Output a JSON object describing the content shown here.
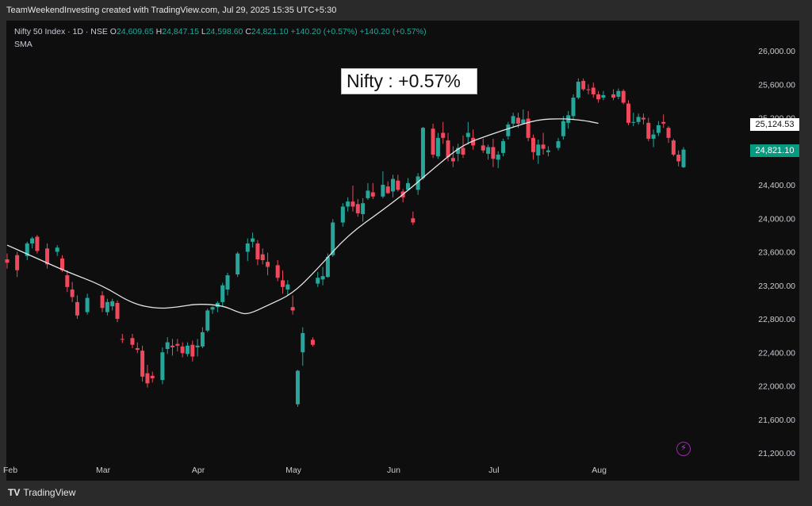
{
  "header": {
    "attribution": "TeamWeekendInvesting created with TradingView.com, Jul 29, 2025 15:35 UTC+5:30"
  },
  "legend": {
    "symbol": "Nifty 50 Index · 1D · NSE",
    "o_label": "O",
    "o_value": "24,609.65",
    "h_label": "H",
    "h_value": "24,847.15",
    "l_label": "L",
    "l_value": "24,598.60",
    "c_label": "C",
    "c_value": "24,821.10",
    "change": "+140.20 (+0.57%)",
    "change2": "+140.20 (+0.57%)",
    "indicator": "SMA"
  },
  "annotation": "Nifty : +0.57%",
  "badges": {
    "sma_value": "25,124.53",
    "last_price": "24,821.10"
  },
  "footer": {
    "logo_mark": "TV",
    "logo_text": "TradingView"
  },
  "icons": {
    "bolt": "lightning-bolt-icon"
  },
  "colors": {
    "up": "#26a69a",
    "down": "#f0485c",
    "sma": "#e6e6e6",
    "background": "#0e0e0e"
  },
  "chart_data": {
    "type": "candlestick",
    "title": "Nifty 50 Index · 1D · NSE",
    "y_ticks": [
      "26,000.00",
      "25,600.00",
      "25,200.00",
      "24,800.00",
      "24,400.00",
      "24,000.00",
      "23,600.00",
      "23,200.00",
      "22,800.00",
      "22,400.00",
      "22,000.00",
      "21,600.00",
      "21,200.00"
    ],
    "y_tick_values": [
      26000,
      25600,
      25200,
      24800,
      24400,
      24000,
      23600,
      23200,
      22800,
      22400,
      22000,
      21600,
      21200
    ],
    "ylim": [
      21050,
      26150
    ],
    "x_labels": [
      "Feb",
      "Mar",
      "Apr",
      "May",
      "Jun",
      "Jul",
      "Aug"
    ],
    "x_label_index": [
      0,
      19,
      38,
      57,
      77,
      97,
      118
    ],
    "index_range": [
      0,
      135
    ],
    "grid": false,
    "candles": [
      [
        23510,
        23580,
        23400,
        23470
      ],
      [
        23560,
        23600,
        23300,
        23380
      ],
      [
        23550,
        23720,
        23500,
        23700
      ],
      [
        23700,
        23780,
        23640,
        23760
      ],
      [
        23780,
        23800,
        23580,
        23610
      ],
      [
        23640,
        23700,
        23400,
        23450
      ],
      [
        23600,
        23680,
        23550,
        23650
      ],
      [
        23520,
        23560,
        23360,
        23380
      ],
      [
        23320,
        23380,
        23120,
        23180
      ],
      [
        23150,
        23240,
        23000,
        23060
      ],
      [
        23000,
        23080,
        22800,
        22840
      ],
      [
        22880,
        23100,
        22850,
        23050
      ],
      [
        23080,
        23130,
        22880,
        22930
      ],
      [
        22880,
        23040,
        22840,
        23000
      ],
      [
        22950,
        23040,
        22900,
        23010
      ],
      [
        22990,
        23020,
        22760,
        22800
      ],
      [
        22560,
        22620,
        22510,
        22550
      ],
      [
        22570,
        22620,
        22450,
        22490
      ],
      [
        22450,
        22520,
        22390,
        22430
      ],
      [
        22420,
        22480,
        22050,
        22110
      ],
      [
        22150,
        22250,
        21980,
        22030
      ],
      [
        22120,
        22170,
        22040,
        22090
      ],
      [
        22070,
        22460,
        22020,
        22400
      ],
      [
        22440,
        22580,
        22380,
        22520
      ],
      [
        22480,
        22560,
        22360,
        22460
      ],
      [
        22500,
        22560,
        22410,
        22480
      ],
      [
        22470,
        22520,
        22340,
        22390
      ],
      [
        22380,
        22520,
        22350,
        22480
      ],
      [
        22490,
        22540,
        22290,
        22350
      ],
      [
        22460,
        22560,
        22350,
        22480
      ],
      [
        22470,
        22700,
        22450,
        22640
      ],
      [
        22660,
        22920,
        22640,
        22900
      ],
      [
        22910,
        22950,
        22860,
        22940
      ],
      [
        22940,
        23010,
        22880,
        22990
      ],
      [
        23000,
        23230,
        22950,
        23200
      ],
      [
        23150,
        23350,
        23080,
        23320
      ],
      [
        23330,
        23600,
        23300,
        23580
      ],
      [
        23600,
        23760,
        23490,
        23700
      ],
      [
        23720,
        23830,
        23650,
        23760
      ],
      [
        23700,
        23740,
        23440,
        23510
      ],
      [
        23570,
        23640,
        23450,
        23500
      ],
      [
        23480,
        23590,
        23320,
        23420
      ],
      [
        23440,
        23500,
        23250,
        23290
      ],
      [
        23260,
        23380,
        23100,
        23180
      ],
      [
        23150,
        23260,
        23080,
        23210
      ],
      [
        22940,
        23080,
        22850,
        22900
      ],
      [
        21780,
        22190,
        21750,
        22180
      ],
      [
        22400,
        22700,
        22240,
        22630
      ],
      [
        22550,
        22580,
        22470,
        22490
      ],
      [
        23220,
        23360,
        23180,
        23290
      ],
      [
        23270,
        23420,
        23200,
        23310
      ],
      [
        23300,
        23580,
        23290,
        23540
      ],
      [
        23560,
        23990,
        23540,
        23950
      ],
      [
        23950,
        24180,
        23900,
        24140
      ],
      [
        24140,
        24250,
        24080,
        24200
      ],
      [
        24200,
        24390,
        24080,
        24140
      ],
      [
        24170,
        24230,
        24020,
        24060
      ],
      [
        24050,
        24240,
        23960,
        24180
      ],
      [
        24240,
        24420,
        24220,
        24330
      ],
      [
        24310,
        24420,
        24230,
        24260
      ],
      [
        24260,
        24560,
        24240,
        24400
      ],
      [
        24380,
        24440,
        24290,
        24300
      ],
      [
        24320,
        24520,
        24250,
        24470
      ],
      [
        24450,
        24520,
        24320,
        24340
      ],
      [
        24320,
        24350,
        24190,
        24250
      ],
      [
        24340,
        24480,
        24330,
        24420
      ],
      [
        24000,
        24080,
        23920,
        23950
      ],
      [
        24340,
        24540,
        24280,
        24500
      ],
      [
        24480,
        25090,
        24460,
        25080
      ],
      [
        25070,
        25130,
        24720,
        24760
      ],
      [
        24740,
        25020,
        24710,
        24960
      ],
      [
        25020,
        25150,
        24890,
        24960
      ],
      [
        24930,
        25020,
        24680,
        24730
      ],
      [
        24720,
        24860,
        24610,
        24680
      ],
      [
        24770,
        24890,
        24680,
        24840
      ],
      [
        24840,
        24990,
        24720,
        24760
      ],
      [
        24970,
        25150,
        24880,
        25020
      ],
      [
        24960,
        25060,
        24820,
        24870
      ],
      [
        24870,
        24950,
        24780,
        24810
      ],
      [
        24770,
        24880,
        24700,
        24850
      ],
      [
        24850,
        24950,
        24610,
        24710
      ],
      [
        24700,
        24800,
        24600,
        24760
      ],
      [
        24780,
        24950,
        24740,
        24920
      ],
      [
        24980,
        25150,
        24940,
        25120
      ],
      [
        25130,
        25260,
        25080,
        25220
      ],
      [
        25200,
        25260,
        25080,
        25130
      ],
      [
        25130,
        25300,
        25120,
        25180
      ],
      [
        25190,
        25280,
        24920,
        24960
      ],
      [
        24960,
        25000,
        24700,
        24790
      ],
      [
        24750,
        24940,
        24650,
        24880
      ],
      [
        24880,
        25020,
        24760,
        24830
      ],
      [
        24790,
        24860,
        24740,
        24810
      ],
      [
        24840,
        24960,
        24810,
        24920
      ],
      [
        24980,
        25220,
        24940,
        25160
      ],
      [
        25140,
        25280,
        25070,
        25230
      ],
      [
        25220,
        25480,
        25180,
        25440
      ],
      [
        25440,
        25670,
        25420,
        25630
      ],
      [
        25640,
        25670,
        25520,
        25540
      ],
      [
        25540,
        25600,
        25480,
        25530
      ],
      [
        25560,
        25620,
        25440,
        25480
      ],
      [
        25480,
        25520,
        25380,
        25420
      ],
      [
        25440,
        25520,
        25410,
        25470
      ],
      [
        25480,
        25540,
        25410,
        25440
      ],
      [
        25450,
        25550,
        25420,
        25520
      ],
      [
        25520,
        25540,
        25360,
        25380
      ],
      [
        25370,
        25410,
        25110,
        25140
      ],
      [
        25140,
        25260,
        25100,
        25150
      ],
      [
        25150,
        25250,
        25120,
        25210
      ],
      [
        25200,
        25250,
        25120,
        25180
      ],
      [
        25140,
        25200,
        24920,
        24950
      ],
      [
        24950,
        25060,
        24850,
        25000
      ],
      [
        25020,
        25160,
        24980,
        25110
      ],
      [
        25150,
        25240,
        25080,
        25130
      ],
      [
        25080,
        25100,
        24900,
        24960
      ],
      [
        24930,
        24950,
        24740,
        24760
      ],
      [
        24760,
        24810,
        24620,
        24680
      ],
      [
        24610,
        24850,
        24600,
        24820
      ]
    ],
    "sma": [
      [
        0,
        23680
      ],
      [
        6,
        23520
      ],
      [
        12,
        23360
      ],
      [
        19,
        23200
      ],
      [
        25,
        22980
      ],
      [
        30,
        22920
      ],
      [
        34,
        22940
      ],
      [
        38,
        22980
      ],
      [
        43,
        22960
      ],
      [
        46,
        22880
      ],
      [
        48,
        22850
      ],
      [
        52,
        22960
      ],
      [
        57,
        23100
      ],
      [
        62,
        23400
      ],
      [
        68,
        23800
      ],
      [
        75,
        24100
      ],
      [
        80,
        24330
      ],
      [
        86,
        24640
      ],
      [
        91,
        24880
      ],
      [
        96,
        24990
      ],
      [
        101,
        25090
      ],
      [
        106,
        25180
      ],
      [
        111,
        25190
      ],
      [
        115,
        25170
      ],
      [
        118,
        25134
      ]
    ],
    "bar_index": [
      0,
      2,
      4,
      5,
      6,
      8,
      10,
      11,
      12,
      13,
      14,
      16,
      19,
      20,
      21,
      22,
      23,
      25,
      26,
      27,
      28,
      29,
      31,
      32,
      33,
      34,
      35,
      36,
      37,
      38,
      39,
      40,
      41,
      42,
      43,
      44,
      46,
      48,
      49,
      50,
      51,
      52,
      54,
      55,
      56,
      57,
      58,
      59,
      61,
      62,
      63,
      64,
      65,
      67,
      68,
      69,
      70,
      71,
      72,
      73,
      75,
      76,
      77,
      78,
      79,
      80,
      81,
      82,
      83,
      85,
      86,
      87,
      88,
      89,
      90,
      91,
      92,
      93,
      95,
      96,
      97,
      98,
      99,
      100,
      101,
      102,
      103,
      104,
      105,
      106,
      107,
      108,
      110,
      111,
      112,
      113,
      114,
      115,
      116,
      117,
      118,
      119,
      121,
      122,
      123,
      124,
      125,
      126,
      127,
      128,
      129,
      130,
      131,
      132,
      133,
      134,
      135
    ]
  }
}
